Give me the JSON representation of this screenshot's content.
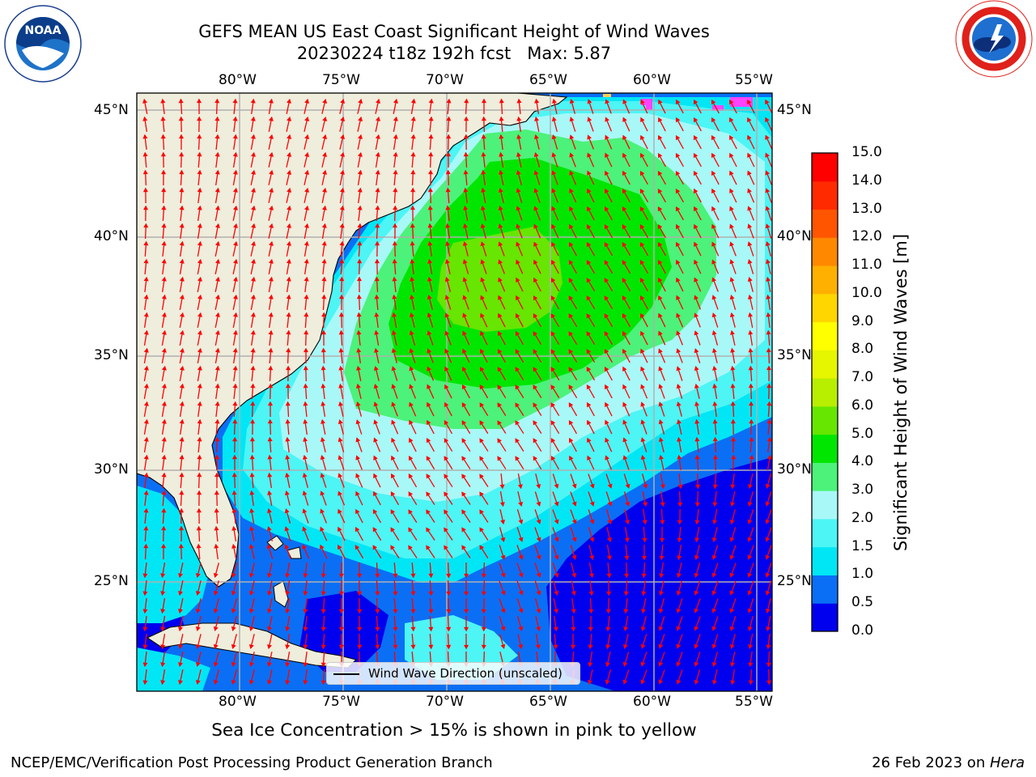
{
  "title_line1": "GEFS MEAN US East Coast Significant Height of Wind Waves",
  "title_line2": "20230224 t18z 192h fcst   Max: 5.87",
  "lon_ticks": [
    "80°W",
    "75°W",
    "70°W",
    "65°W",
    "60°W",
    "55°W"
  ],
  "lat_ticks": [
    "45°N",
    "40°N",
    "35°N",
    "30°N",
    "25°N"
  ],
  "legend_label": "Wind Wave Direction (unscaled)",
  "colorbar": {
    "label": "Significant Height of Wind Waves [m]",
    "ticks": [
      "15.0",
      "14.0",
      "13.0",
      "12.0",
      "11.0",
      "10.0",
      "9.0",
      "8.0",
      "7.0",
      "6.0",
      "5.0",
      "4.0",
      "3.0",
      "2.0",
      "1.5",
      "1.0",
      "0.5",
      "0.0"
    ],
    "colors": [
      "#0000ee",
      "#0a6ff5",
      "#00e6f5",
      "#4df5f5",
      "#a8f8f8",
      "#4cf27a",
      "#00e600",
      "#66e600",
      "#b8ee00",
      "#e6f500",
      "#ffff00",
      "#ffd600",
      "#ffb000",
      "#ff8800",
      "#ff5500",
      "#ff2a00",
      "#ff0000"
    ]
  },
  "ice_note": "Sea Ice Concentration > 15% is shown in pink to yellow",
  "footer_left": "NCEP/EMC/Verification Post Processing Product Generation Branch",
  "footer_date": "26 Feb 2023 on ",
  "footer_machine": "Hera",
  "noaa_logo_text": "NOAA",
  "logo_icons": [
    "noaa-logo",
    "nws-logo"
  ],
  "colors": {
    "land": "#efeddc",
    "arrow": "#ff0000",
    "grid": "#b0b0b0",
    "wave_0_05": "#0000ee",
    "wave_05_1": "#0a6ff5",
    "wave_1_15": "#00e6f5",
    "wave_15_2": "#4df5f5",
    "wave_2_3": "#a8f8f8",
    "wave_3_4": "#4cf27a",
    "wave_4_5": "#00e600",
    "wave_5_6": "#66e600",
    "ice": "#ff44ff"
  }
}
